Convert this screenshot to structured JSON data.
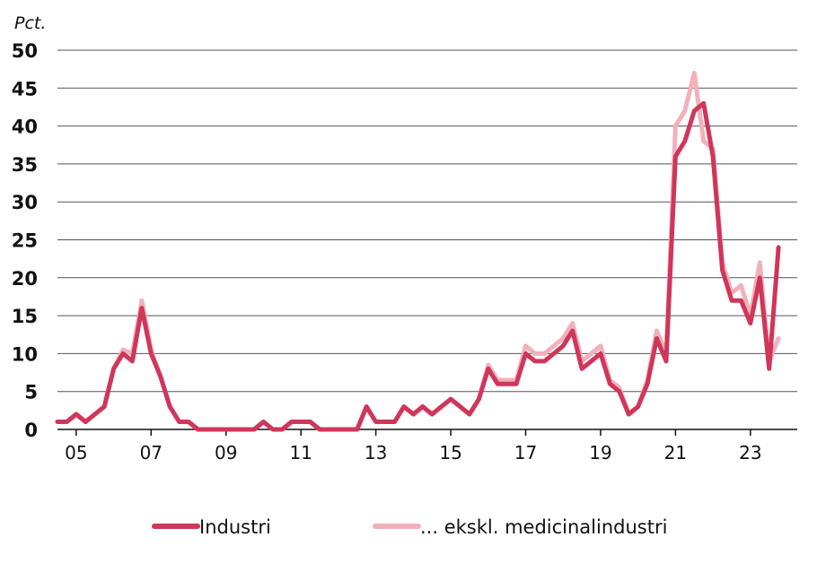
{
  "chart_data": {
    "type": "line",
    "unit_label": "Pct.",
    "ylim": [
      0,
      50
    ],
    "yticks": [
      "0",
      "5",
      "10",
      "15",
      "20",
      "25",
      "30",
      "35",
      "40",
      "45",
      "50"
    ],
    "xlim": [
      2004.5,
      2024.25
    ],
    "xticks": [
      {
        "label": "05",
        "x": 2005
      },
      {
        "label": "07",
        "x": 2007
      },
      {
        "label": "09",
        "x": 2009
      },
      {
        "label": "11",
        "x": 2011
      },
      {
        "label": "13",
        "x": 2013
      },
      {
        "label": "15",
        "x": 2015
      },
      {
        "label": "17",
        "x": 2017
      },
      {
        "label": "19",
        "x": 2019
      },
      {
        "label": "21",
        "x": 2021
      },
      {
        "label": "23",
        "x": 2023
      }
    ],
    "grid": true,
    "legend_position": "bottom",
    "series": [
      {
        "name": "Industri",
        "color": "#d0365a",
        "x": [
          2004.5,
          2004.75,
          2005.0,
          2005.25,
          2005.5,
          2005.75,
          2006.0,
          2006.25,
          2006.5,
          2006.75,
          2007.0,
          2007.25,
          2007.5,
          2007.75,
          2008.0,
          2008.25,
          2008.5,
          2008.75,
          2009.0,
          2009.25,
          2009.5,
          2009.75,
          2010.0,
          2010.25,
          2010.5,
          2010.75,
          2011.0,
          2011.25,
          2011.5,
          2011.75,
          2012.0,
          2012.25,
          2012.5,
          2012.75,
          2013.0,
          2013.25,
          2013.5,
          2013.75,
          2014.0,
          2014.25,
          2014.5,
          2014.75,
          2015.0,
          2015.25,
          2015.5,
          2015.75,
          2016.0,
          2016.25,
          2016.5,
          2016.75,
          2017.0,
          2017.25,
          2017.5,
          2017.75,
          2018.0,
          2018.25,
          2018.5,
          2018.75,
          2019.0,
          2019.25,
          2019.5,
          2019.75,
          2020.0,
          2020.25,
          2020.5,
          2020.75,
          2021.0,
          2021.25,
          2021.5,
          2021.75,
          2022.0,
          2022.25,
          2022.5,
          2022.75,
          2023.0,
          2023.25,
          2023.5,
          2023.75
        ],
        "values": [
          1,
          1,
          2,
          1,
          2,
          3,
          8,
          10,
          9,
          16,
          10,
          7,
          3,
          1,
          1,
          0,
          0,
          0,
          0,
          0,
          0,
          0,
          1,
          0,
          0,
          1,
          1,
          1,
          0,
          0,
          0,
          0,
          0,
          3,
          1,
          1,
          1,
          3,
          2,
          3,
          2,
          3,
          4,
          3,
          2,
          4,
          8,
          6,
          6,
          6,
          10,
          9,
          9,
          10,
          11,
          13,
          8,
          9,
          10,
          6,
          5,
          2,
          3,
          6,
          12,
          9,
          36,
          38,
          42,
          43,
          36,
          21,
          17,
          17,
          14,
          20,
          8,
          24
        ]
      },
      {
        "name": "... ekskl. medicinalindustri",
        "color": "#f2b1ba",
        "x": [
          2004.5,
          2004.75,
          2005.0,
          2005.25,
          2005.5,
          2005.75,
          2006.0,
          2006.25,
          2006.5,
          2006.75,
          2007.0,
          2007.25,
          2007.5,
          2007.75,
          2008.0,
          2008.25,
          2008.5,
          2008.75,
          2009.0,
          2009.25,
          2009.5,
          2009.75,
          2010.0,
          2010.25,
          2010.5,
          2010.75,
          2011.0,
          2011.25,
          2011.5,
          2011.75,
          2012.0,
          2012.25,
          2012.5,
          2012.75,
          2013.0,
          2013.25,
          2013.5,
          2013.75,
          2014.0,
          2014.25,
          2014.5,
          2014.75,
          2015.0,
          2015.25,
          2015.5,
          2015.75,
          2016.0,
          2016.25,
          2016.5,
          2016.75,
          2017.0,
          2017.25,
          2017.5,
          2017.75,
          2018.0,
          2018.25,
          2018.5,
          2018.75,
          2019.0,
          2019.25,
          2019.5,
          2019.75,
          2020.0,
          2020.25,
          2020.5,
          2020.75,
          2021.0,
          2021.25,
          2021.5,
          2021.75,
          2022.0,
          2022.25,
          2022.5,
          2022.75,
          2023.0,
          2023.25,
          2023.5,
          2023.75
        ],
        "values": [
          1,
          1,
          2,
          1,
          2,
          3,
          8,
          10.5,
          10,
          17,
          10.5,
          7,
          3,
          1,
          1,
          0,
          0,
          0,
          0,
          0,
          0,
          0,
          1,
          0,
          0,
          1,
          1,
          1,
          0,
          0,
          0,
          0,
          0,
          3,
          1,
          1,
          1,
          3,
          2,
          3,
          2,
          3,
          4,
          3,
          2,
          4,
          8.5,
          6.5,
          6.5,
          6.5,
          11,
          10,
          10,
          11,
          12,
          14,
          9,
          10,
          11,
          6.5,
          5.5,
          2,
          3,
          6.5,
          13,
          10,
          40,
          42,
          47,
          38,
          37,
          22,
          18,
          19,
          15,
          22,
          9,
          12
        ]
      }
    ]
  }
}
